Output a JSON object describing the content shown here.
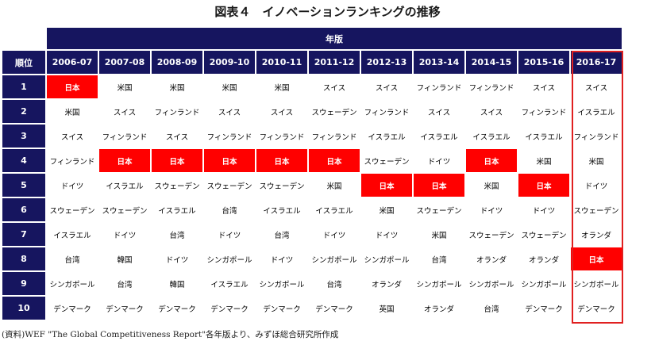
{
  "title": "図表４　イノベーションランキングの推移",
  "header": {
    "group_label": "年版",
    "rank_label": "順位",
    "years": [
      "2006-07",
      "2007-08",
      "2008-09",
      "2009-10",
      "2010-11",
      "2011-12",
      "2012-13",
      "2013-14",
      "2014-15",
      "2015-16",
      "2016-17"
    ]
  },
  "highlight_country": "日本",
  "highlight_color": "#ff0000",
  "header_color": "#16155f",
  "box_color": "#e02020",
  "rows": [
    {
      "rank": "1",
      "cells": [
        "日本",
        "米国",
        "米国",
        "米国",
        "米国",
        "スイス",
        "スイス",
        "フィンランド",
        "フィンランド",
        "スイス",
        "スイス"
      ]
    },
    {
      "rank": "2",
      "cells": [
        "米国",
        "スイス",
        "フィンランド",
        "スイス",
        "スイス",
        "スウェーデン",
        "フィンランド",
        "スイス",
        "スイス",
        "フィンランド",
        "イスラエル"
      ]
    },
    {
      "rank": "3",
      "cells": [
        "スイス",
        "フィンランド",
        "スイス",
        "フィンランド",
        "フィンランド",
        "フィンランド",
        "イスラエル",
        "イスラエル",
        "イスラエル",
        "イスラエル",
        "フィンランド"
      ]
    },
    {
      "rank": "4",
      "cells": [
        "フィンランド",
        "日本",
        "日本",
        "日本",
        "日本",
        "日本",
        "スウェーデン",
        "ドイツ",
        "日本",
        "米国",
        "米国"
      ]
    },
    {
      "rank": "5",
      "cells": [
        "ドイツ",
        "イスラエル",
        "スウェーデン",
        "スウェーデン",
        "スウェーデン",
        "米国",
        "日本",
        "日本",
        "米国",
        "日本",
        "ドイツ"
      ]
    },
    {
      "rank": "6",
      "cells": [
        "スウェーデン",
        "スウェーデン",
        "イスラエル",
        "台湾",
        "イスラエル",
        "イスラエル",
        "米国",
        "スウェーデン",
        "ドイツ",
        "ドイツ",
        "スウェーデン"
      ]
    },
    {
      "rank": "7",
      "cells": [
        "イスラエル",
        "ドイツ",
        "台湾",
        "ドイツ",
        "台湾",
        "ドイツ",
        "ドイツ",
        "米国",
        "スウェーデン",
        "スウェーデン",
        "オランダ"
      ]
    },
    {
      "rank": "8",
      "cells": [
        "台湾",
        "韓国",
        "ドイツ",
        "シンガポール",
        "ドイツ",
        "シンガポール",
        "シンガポール",
        "台湾",
        "オランダ",
        "オランダ",
        "日本"
      ]
    },
    {
      "rank": "9",
      "cells": [
        "シンガポール",
        "台湾",
        "韓国",
        "イスラエル",
        "シンガポール",
        "台湾",
        "オランダ",
        "シンガポール",
        "シンガポール",
        "シンガポール",
        "シンガポール"
      ]
    },
    {
      "rank": "10",
      "cells": [
        "デンマーク",
        "デンマーク",
        "デンマーク",
        "デンマーク",
        "デンマーク",
        "デンマーク",
        "英国",
        "オランダ",
        "台湾",
        "デンマーク",
        "デンマーク"
      ]
    }
  ],
  "source": "(資料)WEF \"The Global Competitiveness Report\"各年版より、みずほ総合研究所作成"
}
